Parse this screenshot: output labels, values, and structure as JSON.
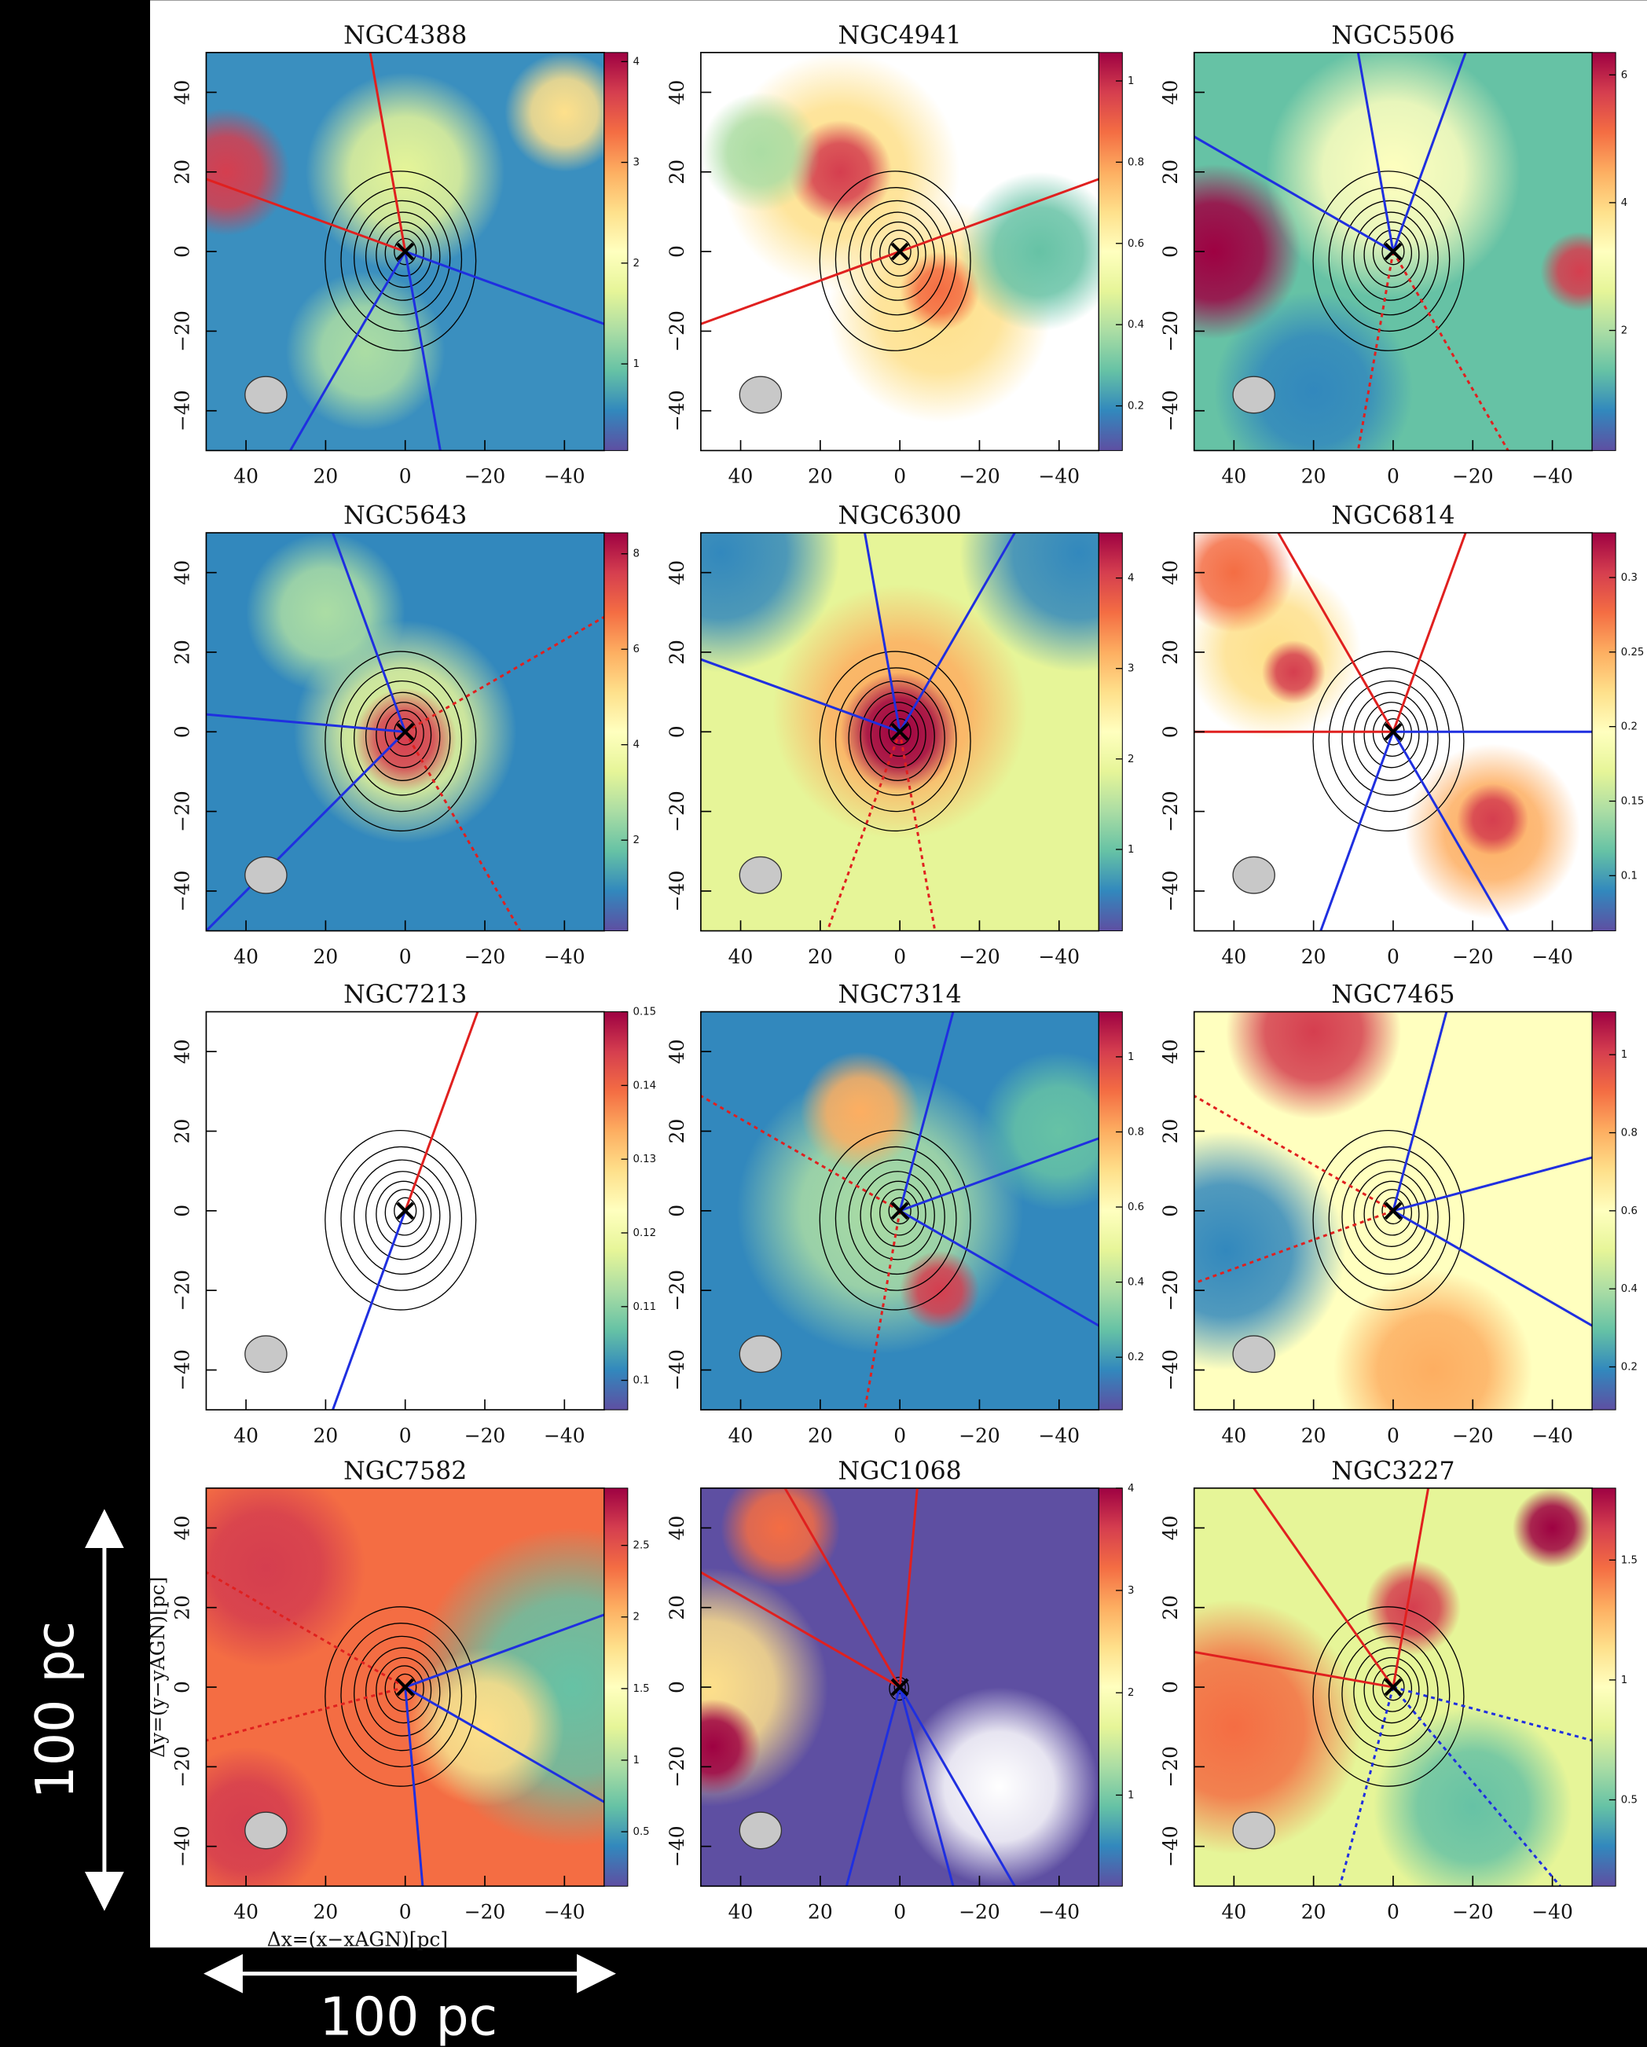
{
  "chart_data": [
    {
      "type": "heatmap",
      "title": "NGC4388",
      "xlim": [
        50,
        -50
      ],
      "ylim": [
        -50,
        50
      ],
      "xticks": [
        40,
        20,
        0,
        {
          "value": -20,
          "label": "−20"
        },
        {
          "value": -40,
          "label": "−40"
        }
      ],
      "yticks": [
        {
          "value": -40,
          "label": "−40"
        },
        {
          "value": -20,
          "label": "−20"
        },
        0,
        20,
        40
      ],
      "clim": [
        0.14,
        4.09
      ],
      "cticks": [
        1,
        2,
        3,
        4
      ]
    },
    {
      "type": "heatmap",
      "title": "NGC4941",
      "xlim": [
        50,
        -50
      ],
      "ylim": [
        -50,
        50
      ],
      "xticks": [
        40,
        20,
        0,
        {
          "value": -20,
          "label": "−20"
        },
        {
          "value": -40,
          "label": "−40"
        }
      ],
      "yticks": [
        {
          "value": -40,
          "label": "−40"
        },
        {
          "value": -20,
          "label": "−20"
        },
        0,
        20,
        40
      ],
      "clim": [
        0.09,
        1.07
      ],
      "cticks": [
        0.2,
        0.4,
        0.6,
        0.8,
        1
      ]
    },
    {
      "type": "heatmap",
      "title": "NGC5506",
      "xlim": [
        50,
        -50
      ],
      "ylim": [
        -50,
        50
      ],
      "xticks": [
        40,
        20,
        0,
        {
          "value": -20,
          "label": "−20"
        },
        {
          "value": -40,
          "label": "−40"
        }
      ],
      "yticks": [
        {
          "value": -40,
          "label": "−40"
        },
        {
          "value": -20,
          "label": "−20"
        },
        0,
        20,
        40
      ],
      "clim": [
        0.12,
        6.35
      ],
      "cticks": [
        2,
        4,
        6
      ]
    },
    {
      "type": "heatmap",
      "title": "NGC5643",
      "xlim": [
        50,
        -50
      ],
      "ylim": [
        -50,
        50
      ],
      "xticks": [
        40,
        20,
        0,
        {
          "value": -20,
          "label": "−20"
        },
        {
          "value": -40,
          "label": "−40"
        }
      ],
      "yticks": [
        {
          "value": -40,
          "label": "−40"
        },
        {
          "value": -20,
          "label": "−20"
        },
        0,
        20,
        40
      ],
      "clim": [
        0.1,
        8.44
      ],
      "cticks": [
        2,
        4,
        6,
        8
      ]
    },
    {
      "type": "heatmap",
      "title": "NGC6300",
      "xlim": [
        50,
        -50
      ],
      "ylim": [
        -50,
        50
      ],
      "xticks": [
        40,
        20,
        0,
        {
          "value": -20,
          "label": "−20"
        },
        {
          "value": -40,
          "label": "−40"
        }
      ],
      "yticks": [
        {
          "value": -40,
          "label": "−40"
        },
        {
          "value": -20,
          "label": "−20"
        },
        0,
        20,
        40
      ],
      "clim": [
        0.1,
        4.5
      ],
      "cticks": [
        1,
        2,
        3,
        4
      ]
    },
    {
      "type": "heatmap",
      "title": "NGC6814",
      "xlim": [
        50,
        -50
      ],
      "ylim": [
        -50,
        50
      ],
      "xticks": [
        40,
        20,
        0,
        {
          "value": -20,
          "label": "−20"
        },
        {
          "value": -40,
          "label": "−40"
        }
      ],
      "yticks": [
        {
          "value": -40,
          "label": "−40"
        },
        {
          "value": -20,
          "label": "−20"
        },
        0,
        20,
        40
      ],
      "clim": [
        0.063,
        0.33
      ],
      "cticks": [
        0.1,
        0.15,
        0.2,
        0.25,
        0.3
      ]
    },
    {
      "type": "heatmap",
      "title": "NGC7213",
      "xlim": [
        50,
        -50
      ],
      "ylim": [
        -50,
        50
      ],
      "xticks": [
        40,
        20,
        0,
        {
          "value": -20,
          "label": "−20"
        },
        {
          "value": -40,
          "label": "−40"
        }
      ],
      "yticks": [
        {
          "value": -40,
          "label": "−40"
        },
        {
          "value": -20,
          "label": "−20"
        },
        0,
        20,
        40
      ],
      "clim": [
        0.096,
        0.15
      ],
      "cticks": [
        0.1,
        0.11,
        0.12,
        0.13,
        0.14,
        0.15
      ]
    },
    {
      "type": "heatmap",
      "title": "NGC7314",
      "xlim": [
        50,
        -50
      ],
      "ylim": [
        -50,
        50
      ],
      "xticks": [
        40,
        20,
        0,
        {
          "value": -20,
          "label": "−20"
        },
        {
          "value": -40,
          "label": "−40"
        }
      ],
      "yticks": [
        {
          "value": -40,
          "label": "−40"
        },
        {
          "value": -20,
          "label": "−20"
        },
        0,
        20,
        40
      ],
      "clim": [
        0.06,
        1.12
      ],
      "cticks": [
        0.2,
        0.4,
        0.6,
        0.8,
        1
      ]
    },
    {
      "type": "heatmap",
      "title": "NGC7465",
      "xlim": [
        50,
        -50
      ],
      "ylim": [
        -50,
        50
      ],
      "xticks": [
        40,
        20,
        0,
        {
          "value": -20,
          "label": "−20"
        },
        {
          "value": -40,
          "label": "−40"
        }
      ],
      "yticks": [
        {
          "value": -40,
          "label": "−40"
        },
        {
          "value": -20,
          "label": "−20"
        },
        0,
        20,
        40
      ],
      "clim": [
        0.09,
        1.11
      ],
      "cticks": [
        0.2,
        0.4,
        0.6,
        0.8,
        1
      ]
    },
    {
      "type": "heatmap",
      "title": "NGC7582",
      "xlabel": "Δx=(x−xAGN)[pc]",
      "ylabel": "Δy=(y−yAGN)[pc]",
      "xlim": [
        50,
        -50
      ],
      "ylim": [
        -50,
        50
      ],
      "xticks": [
        40,
        20,
        0,
        {
          "value": -20,
          "label": "−20"
        },
        {
          "value": -40,
          "label": "−40"
        }
      ],
      "yticks": [
        {
          "value": -40,
          "label": "−40"
        },
        {
          "value": -20,
          "label": "−20"
        },
        0,
        20,
        40
      ],
      "clim": [
        0.12,
        2.9
      ],
      "cticks": [
        0.5,
        1,
        1.5,
        2,
        2.5
      ]
    },
    {
      "type": "heatmap",
      "title": "NGC1068",
      "xlim": [
        50,
        -50
      ],
      "ylim": [
        -50,
        50
      ],
      "xticks": [
        40,
        20,
        0,
        {
          "value": -20,
          "label": "−20"
        },
        {
          "value": -40,
          "label": "−40"
        }
      ],
      "yticks": [
        {
          "value": -40,
          "label": "−40"
        },
        {
          "value": -20,
          "label": "−20"
        },
        0,
        20,
        40
      ],
      "clim": [
        0.11,
        4.0
      ],
      "cticks": [
        1,
        2,
        3,
        4
      ]
    },
    {
      "type": "heatmap",
      "title": "NGC3227",
      "xlim": [
        50,
        -50
      ],
      "ylim": [
        -50,
        50
      ],
      "xticks": [
        40,
        20,
        0,
        {
          "value": -20,
          "label": "−20"
        },
        {
          "value": -40,
          "label": "−40"
        }
      ],
      "yticks": [
        {
          "value": -40,
          "label": "−40"
        },
        {
          "value": -20,
          "label": "−20"
        },
        0,
        20,
        40
      ],
      "clim": [
        0.14,
        1.8
      ],
      "cticks": [
        0.5,
        1,
        1.5
      ]
    }
  ],
  "scale_bar": {
    "vertical": "100 pc",
    "horizontal": "100 pc"
  }
}
